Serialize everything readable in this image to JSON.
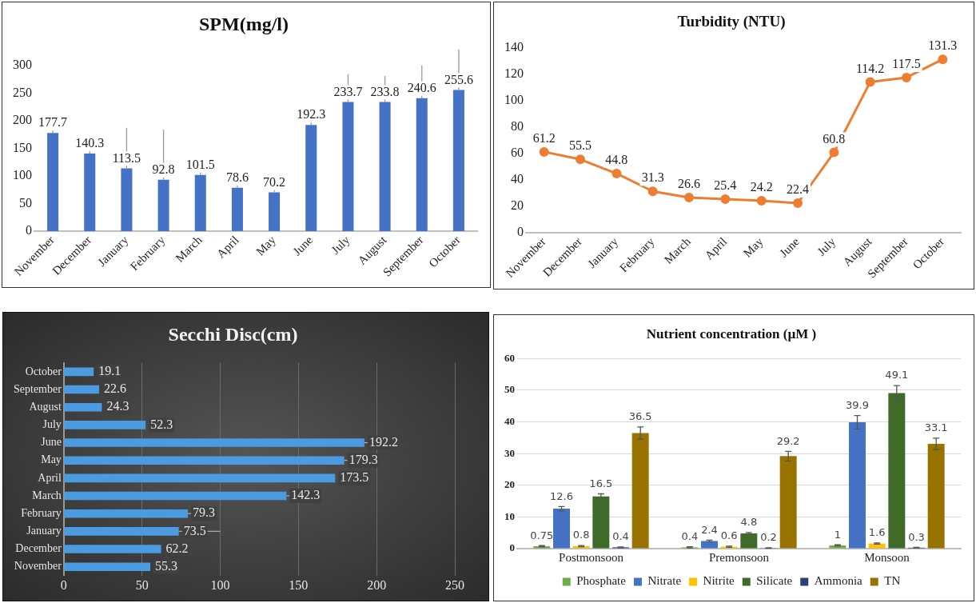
{
  "chart_data": [
    {
      "type": "bar",
      "title": "SPM(mg/l)",
      "categories": [
        "November",
        "December",
        "January",
        "February",
        "March",
        "April",
        "May",
        "June",
        "July",
        "August",
        "September",
        "October"
      ],
      "values": [
        177.7,
        140.3,
        113.5,
        92.8,
        101.5,
        78.6,
        70.2,
        192.3,
        233.7,
        233.8,
        240.6,
        255.6
      ],
      "color": "#4472c4",
      "errors": [
        [
          177.7,
          196
        ],
        [
          140.3,
          161
        ],
        [
          113.5,
          187
        ],
        [
          92.8,
          184
        ],
        [
          101.5,
          126
        ],
        [
          78.6,
          97
        ],
        [
          70.2,
          99
        ],
        [
          192.3,
          210
        ],
        [
          233.7,
          284
        ],
        [
          233.8,
          281
        ],
        [
          240.6,
          300
        ],
        [
          255.6,
          329
        ]
      ],
      "ylim": [
        0,
        300
      ],
      "yticks": [
        0,
        50,
        100,
        150,
        200,
        250,
        300
      ],
      "grid": false,
      "legend": false,
      "data_labels": true
    },
    {
      "type": "line",
      "title": "Turbidity (NTU)",
      "categories": [
        "November",
        "December",
        "January",
        "February",
        "March",
        "April",
        "May",
        "June",
        "July",
        "August",
        "September",
        "October"
      ],
      "values": [
        61.2,
        55.5,
        44.8,
        31.3,
        26.6,
        25.4,
        24.2,
        22.4,
        60.8,
        114.2,
        117.5,
        131.3
      ],
      "color": "#ed7d31",
      "ylim": [
        0,
        140
      ],
      "yticks": [
        0,
        20,
        40,
        60,
        80,
        100,
        120,
        140
      ],
      "grid": false,
      "legend": false,
      "marker": "circle",
      "line_style": "solid",
      "data_labels": true
    },
    {
      "type": "bar",
      "orientation": "horizontal",
      "title": "Secchi Disc(cm)",
      "categories": [
        "October",
        "September",
        "August",
        "July",
        "June",
        "May",
        "April",
        "March",
        "February",
        "January",
        "December",
        "November"
      ],
      "values": [
        19.1,
        22.6,
        24.3,
        52.3,
        192.2,
        179.3,
        173.5,
        142.3,
        79.3,
        73.5,
        62.2,
        55.3
      ],
      "color": "#4a9be0",
      "errors": [
        null,
        null,
        null,
        null,
        [
          192.2,
          200
        ],
        [
          179.3,
          199.6
        ],
        null,
        [
          142.3,
          150
        ],
        [
          79.3,
          91
        ],
        [
          73.5,
          100
        ],
        null,
        null
      ],
      "xlim": [
        0,
        250
      ],
      "xticks": [
        0,
        50,
        100,
        150,
        200,
        250
      ],
      "grid": "x",
      "legend": false,
      "data_labels": true
    },
    {
      "type": "bar",
      "title": "Nutrient concentration (µM )",
      "categories": [
        "Postmonsoon",
        "Premonsoon",
        "Monsoon"
      ],
      "series": [
        {
          "name": "Phosphate",
          "color": "#70ad47",
          "values": [
            0.75,
            0.4,
            1
          ],
          "errors": [
            0.2,
            0.2,
            0.2
          ]
        },
        {
          "name": "Nitrate",
          "color": "#4472c4",
          "values": [
            12.6,
            2.4,
            39.9
          ],
          "errors": [
            0.7,
            0.3,
            2.1
          ]
        },
        {
          "name": "Nitrite",
          "color": "#ffc000",
          "values": [
            0.8,
            0.6,
            1.6
          ],
          "errors": [
            0.2,
            0.2,
            0.2
          ]
        },
        {
          "name": "Silicate",
          "color": "#3f6b2a",
          "values": [
            16.5,
            4.8,
            49.1
          ],
          "errors": [
            0.8,
            0.3,
            2.4
          ]
        },
        {
          "name": "Ammonia",
          "color": "#264478",
          "values": [
            0.4,
            0.2,
            0.3
          ],
          "errors": [
            0.1,
            0.1,
            0.1
          ]
        },
        {
          "name": "TN",
          "color": "#997300",
          "values": [
            36.5,
            29.2,
            33.1
          ],
          "errors": [
            1.9,
            1.5,
            1.8
          ]
        }
      ],
      "ylim": [
        0,
        60
      ],
      "yticks": [
        0,
        10,
        20,
        30,
        40,
        50,
        60
      ],
      "grid": "y",
      "legend": "bottom",
      "data_labels": true
    }
  ]
}
